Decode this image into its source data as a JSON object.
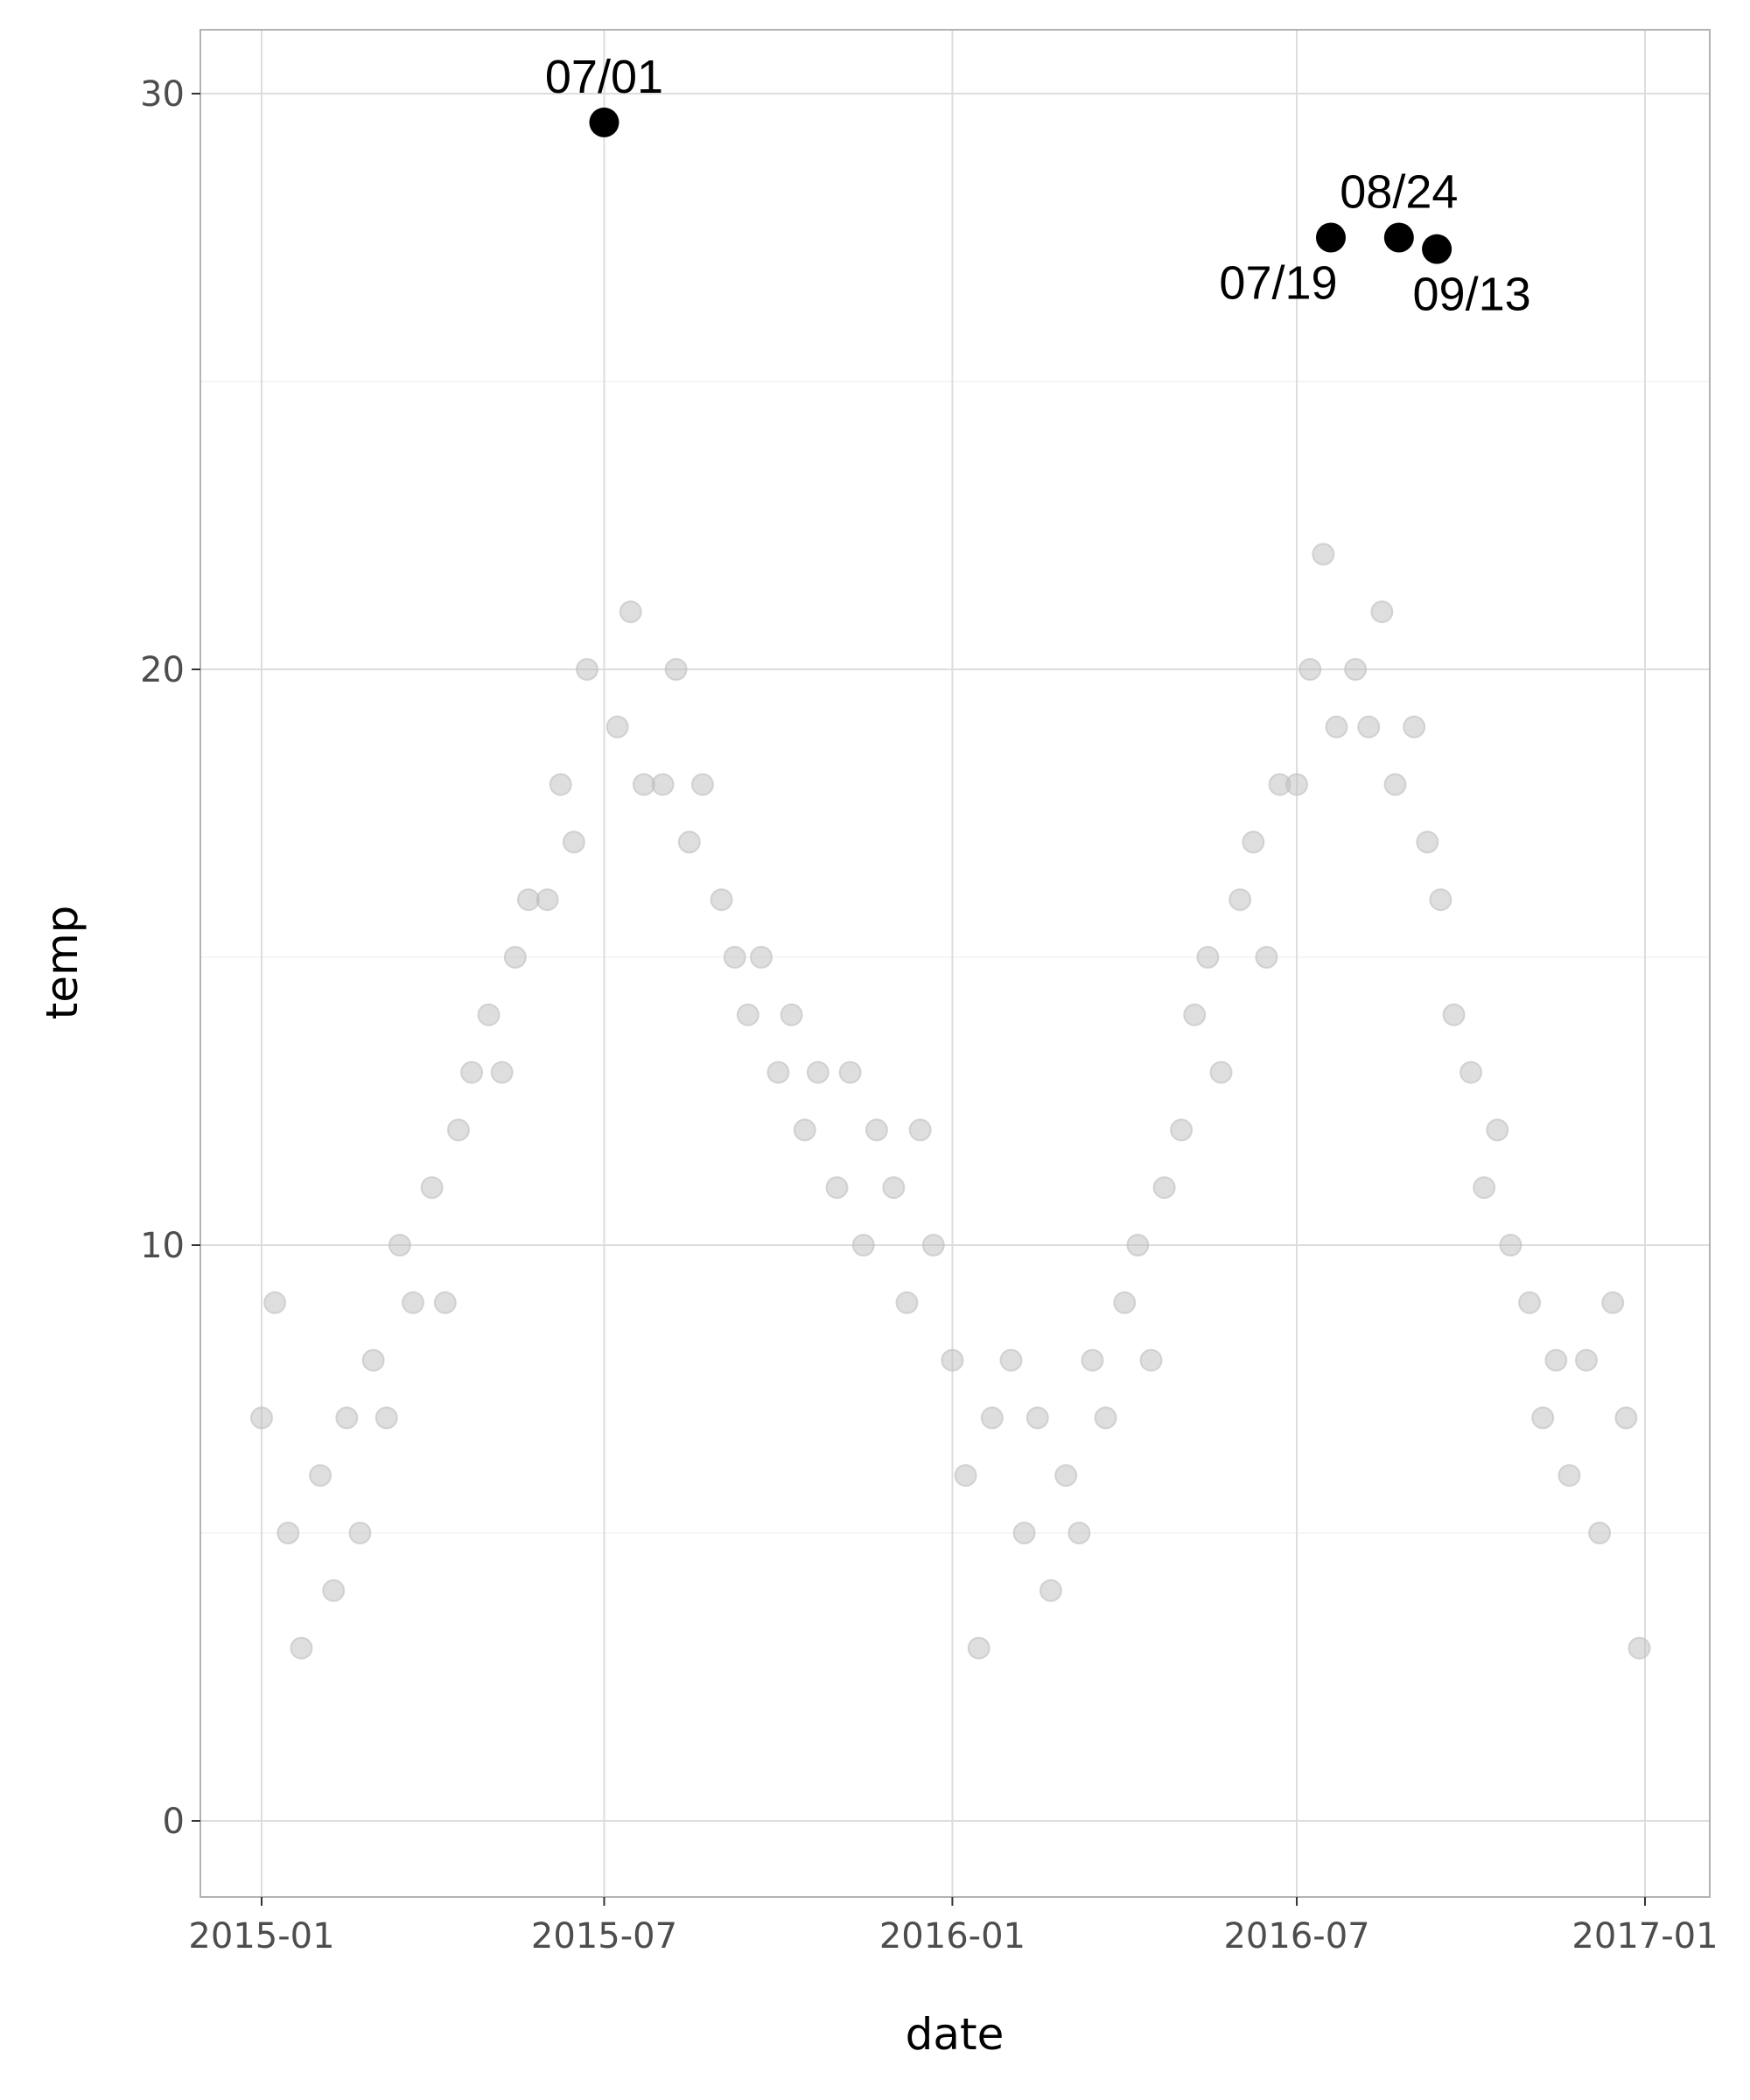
{
  "chart_data": {
    "type": "scatter",
    "xlabel": "date",
    "ylabel": "temp",
    "x_tick_labels": [
      "2015-01",
      "2015-07",
      "2016-01",
      "2016-07",
      "2017-01"
    ],
    "x_ticks": [
      "2015-01-01",
      "2015-07-01",
      "2016-01-01",
      "2016-07-01",
      "2017-01-01"
    ],
    "y_tick_labels": [
      "0",
      "10",
      "20",
      "30"
    ],
    "y_ticks": [
      0,
      10,
      20,
      30
    ],
    "xlim": [
      "2014-11-20",
      "2017-02-10"
    ],
    "ylim": [
      -1.5,
      31
    ],
    "grid": true,
    "colors": {
      "points": "#bebebe",
      "highlight": "#000000",
      "grid": "#dddddd",
      "panel_border": "#b3b3b3"
    },
    "series": [
      {
        "style": "grey semi-transparent points",
        "x": [
          "2015-01-01",
          "2015-01-08",
          "2015-01-15",
          "2015-01-22",
          "2015-02-01",
          "2015-02-08",
          "2015-02-15",
          "2015-02-22",
          "2015-03-01",
          "2015-03-08",
          "2015-03-15",
          "2015-03-22",
          "2015-04-01",
          "2015-04-08",
          "2015-04-15",
          "2015-04-22",
          "2015-05-01",
          "2015-05-08",
          "2015-05-15",
          "2015-05-22",
          "2015-06-01",
          "2015-06-08",
          "2015-06-15",
          "2015-06-22",
          "2015-07-08",
          "2015-07-15",
          "2015-07-22",
          "2015-08-01",
          "2015-08-08",
          "2015-08-15",
          "2015-08-22",
          "2015-09-01",
          "2015-09-08",
          "2015-09-15",
          "2015-09-22",
          "2015-10-01",
          "2015-10-08",
          "2015-10-15",
          "2015-10-22",
          "2015-11-01",
          "2015-11-08",
          "2015-11-15",
          "2015-11-22",
          "2015-12-01",
          "2015-12-08",
          "2015-12-15",
          "2015-12-22",
          "2016-01-01",
          "2016-01-08",
          "2016-01-15",
          "2016-01-22",
          "2016-02-01",
          "2016-02-08",
          "2016-02-15",
          "2016-02-22",
          "2016-03-01",
          "2016-03-08",
          "2016-03-15",
          "2016-03-22",
          "2016-04-01",
          "2016-04-08",
          "2016-04-15",
          "2016-04-22",
          "2016-05-01",
          "2016-05-08",
          "2016-05-15",
          "2016-05-22",
          "2016-06-01",
          "2016-06-08",
          "2016-06-15",
          "2016-06-22",
          "2016-07-01",
          "2016-07-08",
          "2016-07-15",
          "2016-07-22",
          "2016-08-01",
          "2016-08-08",
          "2016-08-15",
          "2016-08-22",
          "2016-09-01",
          "2016-09-08",
          "2016-09-15",
          "2016-09-22",
          "2016-10-01",
          "2016-10-08",
          "2016-10-15",
          "2016-10-22",
          "2016-11-01",
          "2016-11-08",
          "2016-11-15",
          "2016-11-22",
          "2016-12-01",
          "2016-12-08",
          "2016-12-15",
          "2016-12-22",
          "2016-12-29"
        ],
        "y": [
          7,
          9,
          5,
          3,
          6,
          4,
          7,
          5,
          8,
          7,
          10,
          9,
          11,
          9,
          12,
          13,
          14,
          13,
          15,
          16,
          16,
          18,
          17,
          20,
          19,
          21,
          18,
          18,
          20,
          17,
          18,
          16,
          15,
          14,
          15,
          13,
          14,
          12,
          13,
          11,
          13,
          10,
          12,
          11,
          9,
          12,
          10,
          8,
          6,
          3,
          7,
          8,
          5,
          7,
          4,
          6,
          5,
          8,
          7,
          9,
          10,
          8,
          11,
          12,
          14,
          15,
          13,
          16,
          17,
          15,
          18,
          18,
          20,
          22,
          19,
          20,
          19,
          21,
          18,
          19,
          17,
          16,
          14,
          13,
          11,
          12,
          10,
          9,
          7,
          8,
          6,
          8,
          5,
          9,
          7,
          3
        ]
      },
      {
        "style": "black highlighted points",
        "x": [
          "2015-07-01",
          "2016-07-19",
          "2016-08-24",
          "2016-09-13"
        ],
        "y": [
          29.5,
          27.5,
          27.5,
          27.3
        ],
        "labels": [
          "07/01",
          "07/19",
          "08/24",
          "09/13"
        ]
      }
    ]
  }
}
